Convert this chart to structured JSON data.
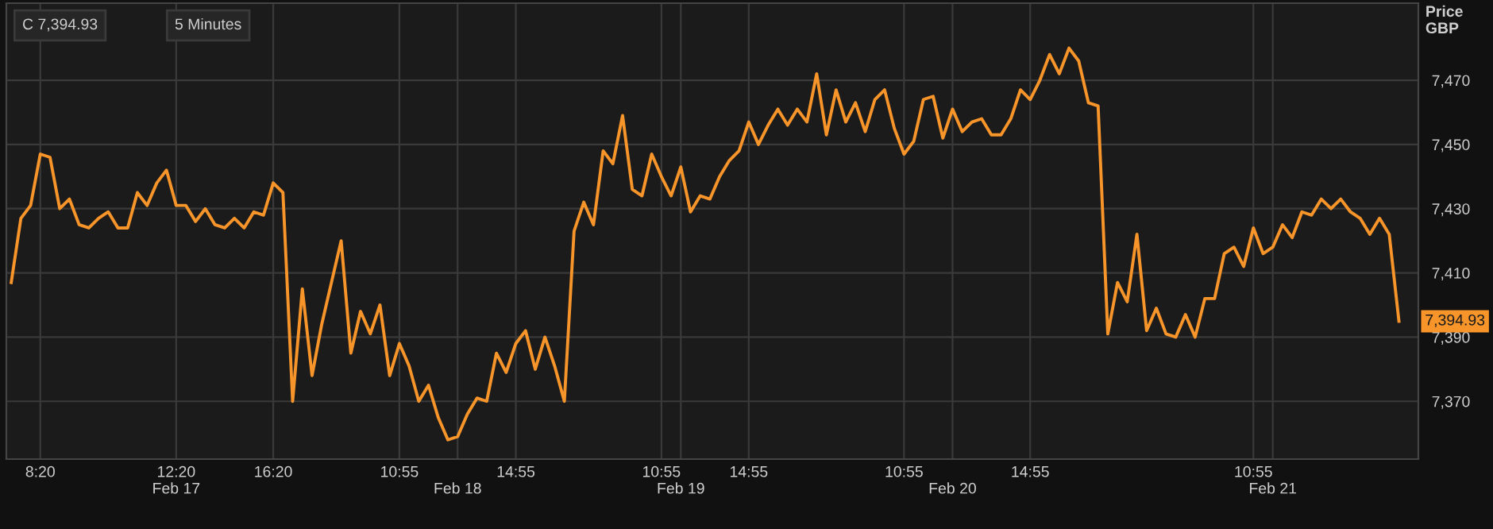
{
  "chart_data": {
    "type": "line",
    "ylabel": "Price\nGBP",
    "categories": [
      null,
      null,
      null,
      "8:20",
      null,
      null,
      null,
      null,
      null,
      null,
      null,
      null,
      null,
      null,
      null,
      null,
      null,
      "12:20\nFeb 17",
      null,
      null,
      null,
      null,
      null,
      null,
      null,
      null,
      null,
      "16:20",
      null,
      null,
      null,
      null,
      null,
      null,
      null,
      null,
      null,
      null,
      null,
      null,
      "10:55",
      null,
      null,
      null,
      null,
      null,
      "\nFeb 18",
      null,
      null,
      null,
      null,
      null,
      "14:55",
      null,
      null,
      null,
      null,
      null,
      null,
      null,
      null,
      null,
      null,
      null,
      null,
      null,
      null,
      "10:55",
      null,
      "\nFeb 19",
      null,
      null,
      null,
      null,
      null,
      null,
      "14:55",
      null,
      null,
      null,
      null,
      null,
      null,
      null,
      null,
      null,
      null,
      null,
      null,
      null,
      null,
      null,
      "10:55",
      null,
      null,
      null,
      null,
      "\nFeb 20",
      null,
      null,
      null,
      null,
      null,
      null,
      null,
      "14:55",
      null,
      null,
      null,
      null,
      null,
      null,
      null,
      null,
      null,
      null,
      null,
      null,
      null,
      null,
      null,
      null,
      null,
      null,
      null,
      null,
      null,
      null,
      "10:55",
      null,
      "\nFeb 21",
      null,
      null,
      null,
      null,
      null,
      null,
      null,
      null,
      null,
      null,
      null,
      null,
      null
    ],
    "series": [
      {
        "color": "#f7952a",
        "values": [
          7407,
          7427,
          7431,
          7447,
          7446,
          7430,
          7433,
          7425,
          7424,
          7427,
          7429,
          7424,
          7424,
          7435,
          7431,
          7438,
          7442,
          7431,
          7431,
          7426,
          7430,
          7425,
          7424,
          7427,
          7424,
          7429,
          7428,
          7438,
          7435,
          7370,
          7405,
          7378,
          7394,
          7407,
          7420,
          7385,
          7398,
          7391,
          7400,
          7378,
          7388,
          7381,
          7370,
          7375,
          7365,
          7358,
          7359,
          7366,
          7371,
          7370,
          7385,
          7379,
          7388,
          7392,
          7380,
          7390,
          7381,
          7370,
          7423,
          7432,
          7425,
          7448,
          7444,
          7459,
          7436,
          7434,
          7447,
          7440,
          7434,
          7443,
          7429,
          7434,
          7433,
          7440,
          7445,
          7448,
          7457,
          7450,
          7456,
          7461,
          7456,
          7461,
          7457,
          7472,
          7453,
          7467,
          7457,
          7463,
          7454,
          7464,
          7467,
          7455,
          7447,
          7451,
          7464,
          7465,
          7452,
          7461,
          7454,
          7457,
          7458,
          7453,
          7453,
          7458,
          7467,
          7464,
          7470,
          7478,
          7472,
          7480,
          7476,
          7463,
          7462,
          7391,
          7407,
          7401,
          7422,
          7392,
          7399,
          7391,
          7390,
          7397,
          7390,
          7402,
          7402,
          7416,
          7418,
          7412,
          7424,
          7416,
          7418,
          7425,
          7421,
          7429,
          7428,
          7433,
          7430,
          7433,
          7429,
          7427,
          7422,
          7427,
          7422,
          7394.93
        ]
      }
    ],
    "ylim": [
      7352,
      7494
    ],
    "yticks": [
      {
        "value": 7370,
        "label": "7,370"
      },
      {
        "value": 7390,
        "label": "7,390"
      },
      {
        "value": 7410,
        "label": "7,410"
      },
      {
        "value": 7430,
        "label": "7,430"
      },
      {
        "value": 7450,
        "label": "7,450"
      },
      {
        "value": 7470,
        "label": "7,470"
      }
    ],
    "grid": true,
    "marker": "none",
    "line_style": "solid",
    "annotations": [
      "C 7,394.93",
      "5 Minutes",
      {
        "text": "7,394.93",
        "y": 7394.93
      }
    ]
  }
}
